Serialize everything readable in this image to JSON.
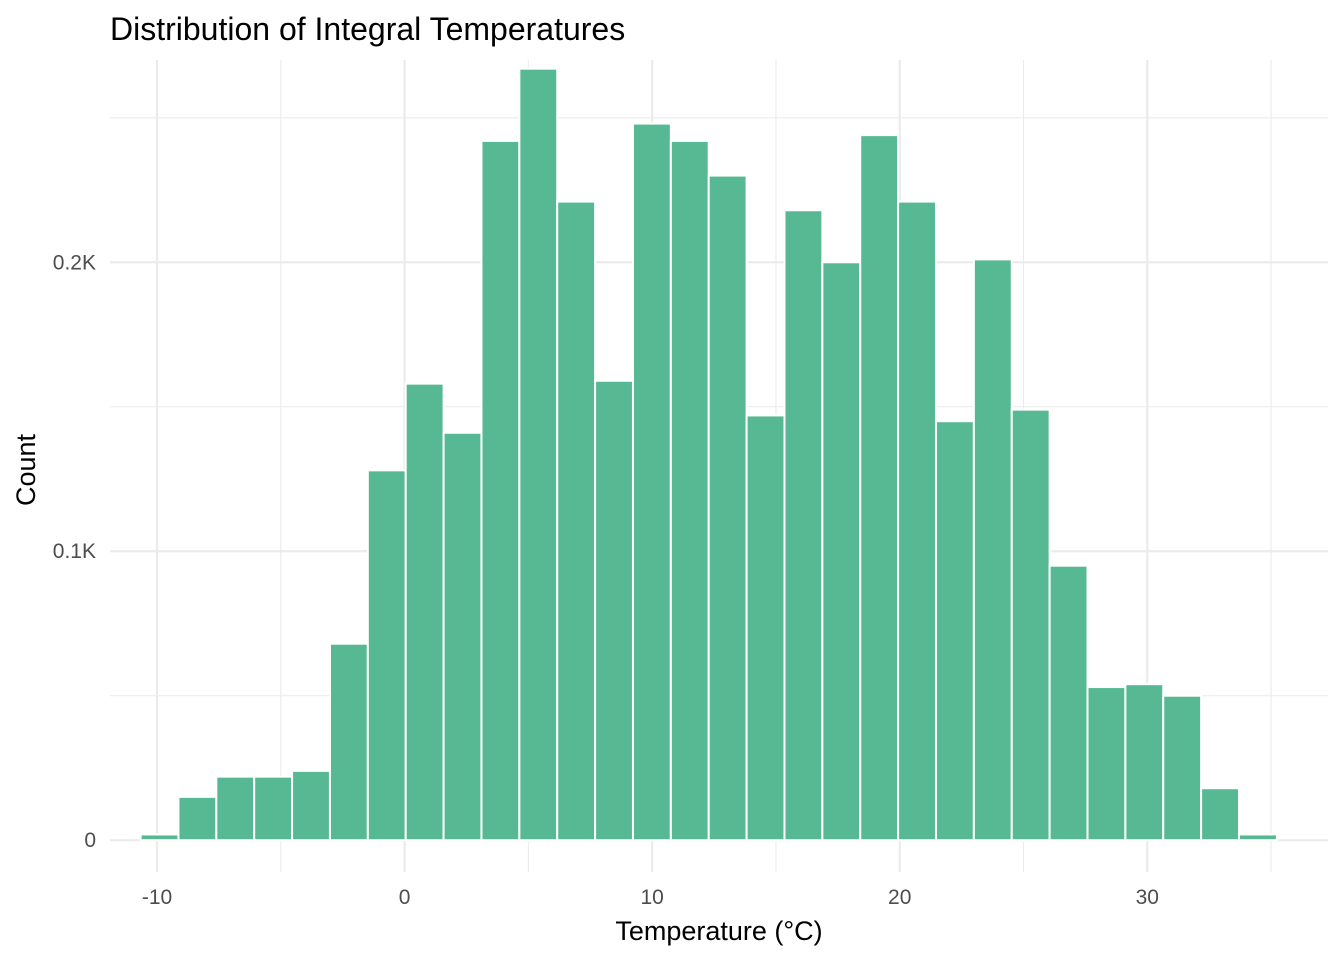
{
  "chart_data": {
    "type": "bar",
    "title": "Distribution of Integral Temperatures",
    "xlabel": "Temperature (°C)",
    "ylabel": "Count",
    "bar_color": "#57b993",
    "bin_width": 1.53,
    "x_ticks": [
      -10,
      0,
      10,
      20,
      30
    ],
    "x_tick_labels": [
      "-10",
      "0",
      "10",
      "20",
      "30"
    ],
    "y_ticks": [
      0,
      100,
      200
    ],
    "y_tick_labels": [
      "0",
      "0.1K",
      "0.2K"
    ],
    "xlim": [
      -11.9,
      37.3
    ],
    "ylim": [
      -11,
      270
    ],
    "bins": [
      {
        "x": -9.9,
        "count": 2
      },
      {
        "x": -8.37,
        "count": 15
      },
      {
        "x": -6.84,
        "count": 22
      },
      {
        "x": -5.31,
        "count": 22
      },
      {
        "x": -3.78,
        "count": 24
      },
      {
        "x": -2.25,
        "count": 68
      },
      {
        "x": -0.72,
        "count": 128
      },
      {
        "x": 0.81,
        "count": 158
      },
      {
        "x": 2.34,
        "count": 141
      },
      {
        "x": 3.87,
        "count": 242
      },
      {
        "x": 5.4,
        "count": 267
      },
      {
        "x": 6.93,
        "count": 221
      },
      {
        "x": 8.46,
        "count": 159
      },
      {
        "x": 9.99,
        "count": 248
      },
      {
        "x": 11.52,
        "count": 242
      },
      {
        "x": 13.05,
        "count": 230
      },
      {
        "x": 14.58,
        "count": 147
      },
      {
        "x": 16.11,
        "count": 218
      },
      {
        "x": 17.64,
        "count": 200
      },
      {
        "x": 19.17,
        "count": 244
      },
      {
        "x": 20.7,
        "count": 221
      },
      {
        "x": 22.23,
        "count": 145
      },
      {
        "x": 23.76,
        "count": 201
      },
      {
        "x": 25.29,
        "count": 149
      },
      {
        "x": 26.82,
        "count": 95
      },
      {
        "x": 28.35,
        "count": 53
      },
      {
        "x": 29.88,
        "count": 54
      },
      {
        "x": 31.41,
        "count": 50
      },
      {
        "x": 32.94,
        "count": 18
      },
      {
        "x": 34.47,
        "count": 2
      }
    ],
    "grid": true,
    "legend": "none"
  }
}
